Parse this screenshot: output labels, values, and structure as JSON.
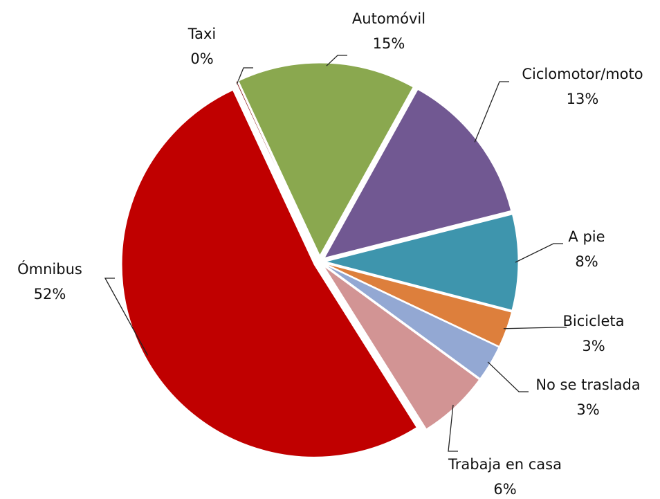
{
  "chart_data": {
    "type": "pie",
    "categories": [
      "Taxi",
      "Automóvil",
      "Ciclomotor/moto",
      "A pie",
      "Bicicleta",
      "No se traslada",
      "Trabaja en casa",
      "Ómnibus"
    ],
    "values": [
      0,
      15,
      13,
      8,
      3,
      3,
      6,
      52
    ],
    "value_labels": [
      "0%",
      "15%",
      "13%",
      "8%",
      "3%",
      "3%",
      "6%",
      "52%"
    ],
    "colors": [
      "#8b1a1a",
      "#8aa84f",
      "#715892",
      "#3e95ad",
      "#dd7f3c",
      "#93a8d3",
      "#d29494",
      "#c00000"
    ]
  }
}
